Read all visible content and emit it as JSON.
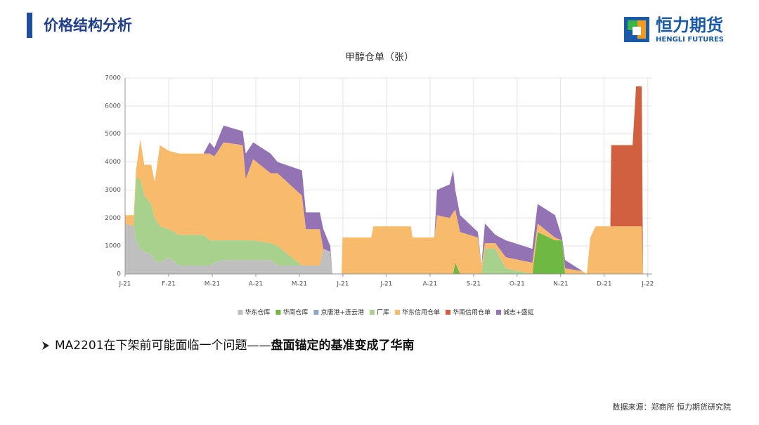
{
  "header": {
    "title": "价格结构分析"
  },
  "logo": {
    "name": "恒力期货",
    "subtitle": "HENGLI FUTURES"
  },
  "chart_data": {
    "type": "stacked_area",
    "title": "甲醇仓单（张）",
    "x": [
      0,
      0.2,
      0.25,
      0.35,
      0.44,
      0.6,
      0.68,
      0.8,
      1.0,
      1.24,
      1.8,
      1.94,
      2.05,
      2.26,
      2.7,
      2.77,
      2.94,
      3.34,
      3.5,
      4.06,
      4.15,
      4.47,
      4.55,
      4.71,
      4.76,
      4.97,
      4.99,
      5.65,
      5.7,
      6.56,
      6.6,
      7.1,
      7.16,
      7.45,
      7.53,
      7.58,
      7.69,
      8.1,
      8.18,
      8.26,
      8.5,
      8.74,
      9.35,
      9.47,
      9.87,
      10.03,
      10.1,
      10.5,
      10.6,
      10.68,
      10.8,
      11.14,
      11.16,
      11.65,
      11.73,
      11.86,
      11.89
    ],
    "series": [
      {
        "name": "华东仓库",
        "color": "#bfbfbf",
        "values": [
          1800,
          1700,
          1200,
          900,
          800,
          700,
          500,
          400,
          600,
          300,
          300,
          300,
          400,
          500,
          500,
          500,
          500,
          500,
          300,
          300,
          300,
          300,
          900,
          800,
          0,
          0,
          0,
          0,
          0,
          0,
          0,
          0,
          0,
          0,
          0,
          0,
          0,
          0,
          0,
          0,
          0,
          0,
          0,
          0,
          0,
          0,
          0,
          0,
          0,
          0,
          0,
          0,
          0,
          0,
          0,
          0,
          0
        ]
      },
      {
        "name": "华南仓库",
        "color": "#6fb843",
        "values": [
          0,
          0,
          0,
          0,
          0,
          0,
          0,
          0,
          0,
          0,
          0,
          0,
          0,
          0,
          0,
          0,
          0,
          0,
          0,
          0,
          0,
          0,
          0,
          0,
          0,
          0,
          0,
          0,
          0,
          0,
          0,
          0,
          0,
          0,
          0,
          400,
          0,
          0,
          0,
          0,
          0,
          0,
          0,
          1500,
          1200,
          1200,
          0,
          0,
          0,
          0,
          0,
          0,
          0,
          0,
          0,
          0,
          0
        ]
      },
      {
        "name": "京唐港+连云港",
        "color": "#8ea9c8",
        "values": [
          0,
          0,
          0,
          0,
          0,
          0,
          0,
          0,
          0,
          0,
          0,
          0,
          0,
          0,
          0,
          0,
          0,
          0,
          0,
          0,
          0,
          0,
          0,
          0,
          0,
          0,
          0,
          0,
          0,
          0,
          0,
          0,
          0,
          0,
          0,
          0,
          0,
          0,
          0,
          0,
          0,
          0,
          0,
          0,
          0,
          0,
          0,
          0,
          0,
          0,
          0,
          0,
          0,
          0,
          0,
          0,
          0
        ]
      },
      {
        "name": "厂库",
        "color": "#a9d18e",
        "values": [
          0,
          0,
          2200,
          2500,
          2000,
          1800,
          1500,
          1300,
          1000,
          1100,
          1100,
          900,
          800,
          700,
          700,
          700,
          700,
          600,
          700,
          0,
          0,
          0,
          0,
          0,
          0,
          0,
          0,
          0,
          0,
          0,
          0,
          0,
          0,
          0,
          0,
          0,
          0,
          0,
          0,
          900,
          900,
          200,
          0,
          0,
          0,
          0,
          0,
          0,
          0,
          0,
          0,
          0,
          0,
          0,
          0,
          0,
          0
        ]
      },
      {
        "name": "华东信用仓单",
        "color": "#f7bb6b",
        "values": [
          300,
          400,
          300,
          1400,
          1100,
          1400,
          1300,
          2900,
          2800,
          2900,
          2900,
          3100,
          3000,
          3500,
          3400,
          2200,
          2900,
          2500,
          2600,
          2500,
          1300,
          1300,
          0,
          0,
          0,
          0,
          1300,
          1300,
          1700,
          1700,
          1300,
          1300,
          2100,
          2000,
          2200,
          1900,
          1500,
          1300,
          300,
          200,
          200,
          400,
          400,
          300,
          100,
          0,
          200,
          100,
          0,
          1300,
          1700,
          1700,
          1700,
          1700,
          1700,
          1700,
          0
        ]
      },
      {
        "name": "华南信用仓单",
        "color": "#d0603f",
        "values": [
          0,
          0,
          0,
          0,
          0,
          0,
          0,
          0,
          0,
          0,
          0,
          0,
          0,
          0,
          0,
          0,
          0,
          0,
          0,
          0,
          0,
          0,
          0,
          0,
          0,
          0,
          0,
          0,
          0,
          0,
          0,
          0,
          0,
          0,
          0,
          0,
          0,
          0,
          0,
          0,
          0,
          0,
          0,
          0,
          0,
          0,
          0,
          0,
          0,
          0,
          0,
          0,
          2900,
          2900,
          5000,
          5000,
          0
        ]
      },
      {
        "name": "诚志+盛虹",
        "color": "#9473b4",
        "values": [
          0,
          0,
          0,
          0,
          0,
          0,
          0,
          0,
          0,
          0,
          0,
          400,
          300,
          600,
          500,
          900,
          600,
          700,
          400,
          900,
          600,
          600,
          700,
          200,
          0,
          0,
          0,
          0,
          0,
          0,
          0,
          0,
          900,
          1200,
          1500,
          700,
          600,
          200,
          0,
          700,
          300,
          600,
          500,
          700,
          800,
          100,
          300,
          0,
          0,
          0,
          0,
          0,
          0,
          0,
          0,
          0,
          0
        ]
      }
    ],
    "xlim": [
      0,
      12.1
    ],
    "xticks": [
      {
        "value": 0,
        "label": "J-21"
      },
      {
        "value": 1,
        "label": "F-21"
      },
      {
        "value": 2,
        "label": "M-21"
      },
      {
        "value": 3,
        "label": "A-21"
      },
      {
        "value": 4,
        "label": "M-21"
      },
      {
        "value": 5,
        "label": "J-21"
      },
      {
        "value": 6,
        "label": "J-21"
      },
      {
        "value": 7,
        "label": "A-21"
      },
      {
        "value": 8,
        "label": "S-21"
      },
      {
        "value": 9,
        "label": "O-21"
      },
      {
        "value": 10,
        "label": "N-21"
      },
      {
        "value": 11,
        "label": "D-21"
      },
      {
        "value": 12,
        "label": "J-22"
      }
    ],
    "ylim": [
      0,
      7000
    ],
    "yticks": [
      0,
      1000,
      2000,
      3000,
      4000,
      5000,
      6000,
      7000
    ],
    "grid": true,
    "legend": "bottom"
  },
  "bullet": {
    "text": "MA2201在下架前可能面临一个问题——",
    "emphasis": "盘面锚定的基准变成了华南"
  },
  "source": "数据来源：郑商所  恒力期货研究院"
}
